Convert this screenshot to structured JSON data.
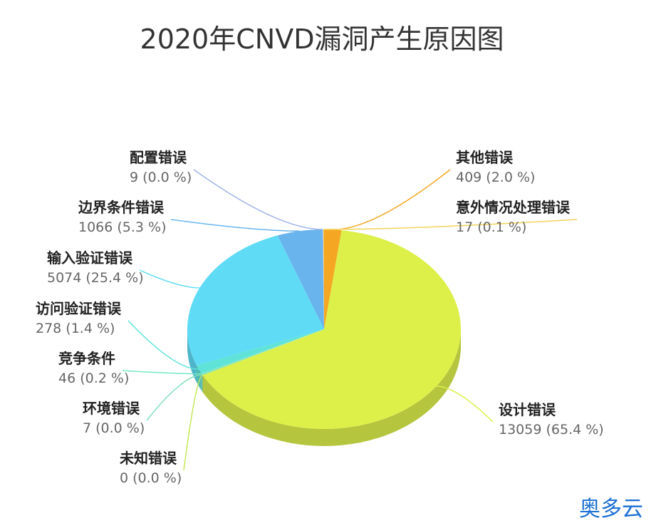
{
  "chart_data": {
    "type": "pie",
    "title": "2020年CNVD漏洞产生原因图",
    "slices": [
      {
        "name": "其他错误",
        "value": 409,
        "percent_label": "409 (2.0 %)",
        "color": "#f5a623"
      },
      {
        "name": "设计错误",
        "value": 13059,
        "percent_label": "13059 (65.4 %)",
        "color": "#ddf04a"
      },
      {
        "name": "未知错误",
        "value": 0,
        "percent_label": "0 (0.0 %)",
        "color": "#c6e85a"
      },
      {
        "name": "环境错误",
        "value": 7,
        "percent_label": "7 (0.0 %)",
        "color": "#7ee0b8"
      },
      {
        "name": "竞争条件",
        "value": 46,
        "percent_label": "46 (0.2 %)",
        "color": "#74e7c7"
      },
      {
        "name": "访问验证错误",
        "value": 278,
        "percent_label": "278 (1.4 %)",
        "color": "#5fe3d9"
      },
      {
        "name": "输入验证错误",
        "value": 5074,
        "percent_label": "5074 (25.4 %)",
        "color": "#5fdbf5"
      },
      {
        "name": "边界条件错误",
        "value": 1066,
        "percent_label": "1066 (5.3 %)",
        "color": "#6ab4ee"
      },
      {
        "name": "配置错误",
        "value": 9,
        "percent_label": "9 (0.0 %)",
        "color": "#9fb4e8"
      },
      {
        "name": "意外情况处理错误",
        "value": 17,
        "percent_label": "17 (0.1 %)",
        "color": "#f3d35a"
      }
    ],
    "legend": "none",
    "style": "3d-pie-with-callout-labels"
  },
  "watermark": "奥多云"
}
